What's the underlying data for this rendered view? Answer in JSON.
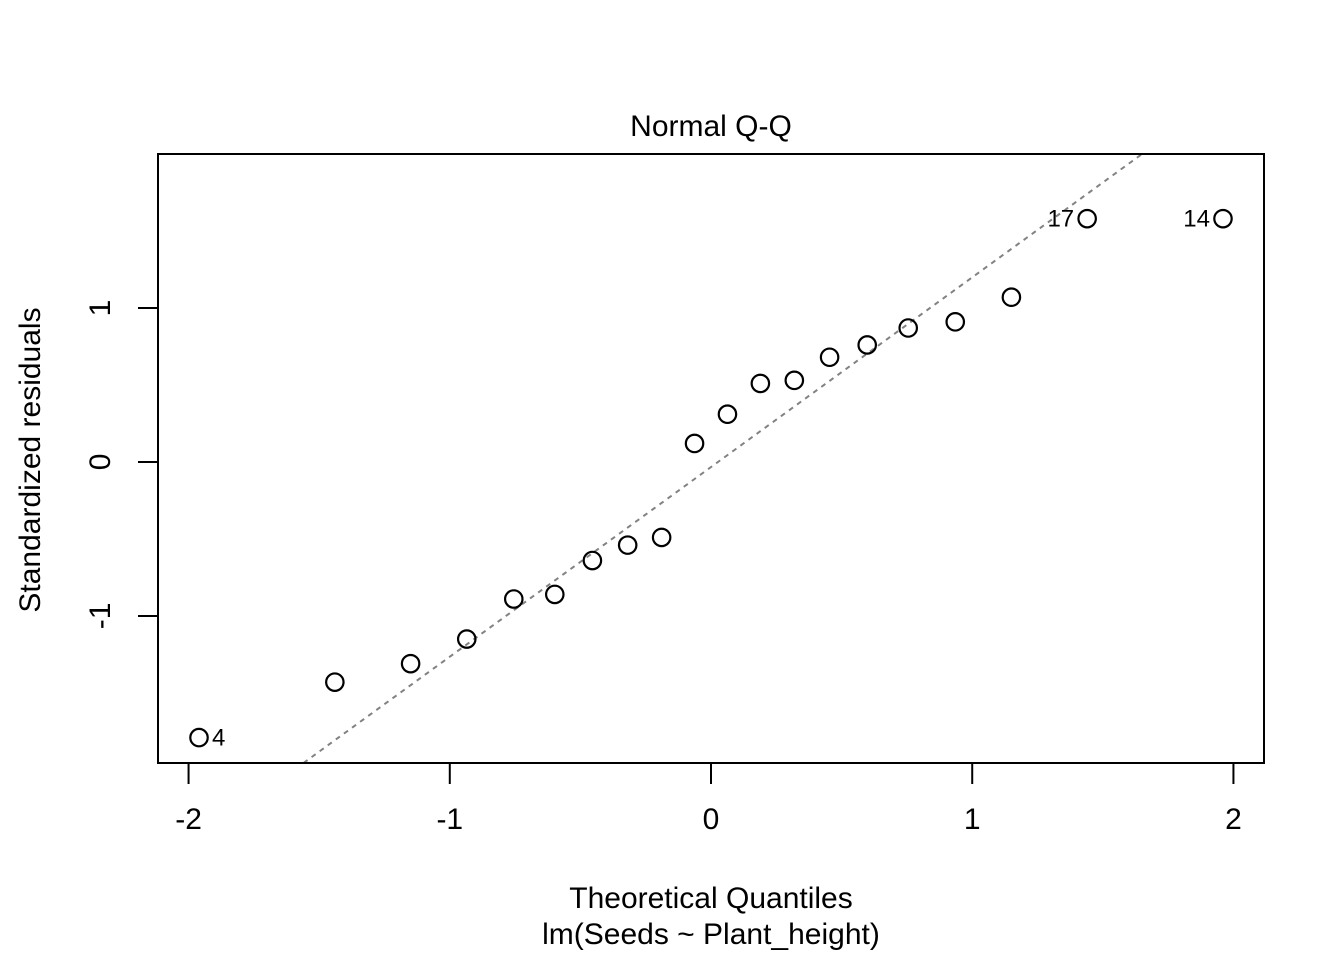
{
  "chart_data": {
    "type": "scatter",
    "title": "Normal Q-Q",
    "xlabel": "Theoretical Quantiles",
    "x_sublabel": "lm(Seeds ~ Plant_height)",
    "ylabel": "Standardized residuals",
    "xlim": [
      -2.117,
      2.117
    ],
    "ylim": [
      -1.955,
      2.0
    ],
    "x_ticks": [
      -2,
      -1,
      0,
      1,
      2
    ],
    "y_ticks": [
      -1,
      0,
      1
    ],
    "grid": false,
    "legend": "none",
    "point_style": {
      "marker": "open-circle",
      "radius_px": 8.7,
      "stroke_color": "#000000",
      "stroke_width": 2.2
    },
    "reference_line": {
      "name": "qqline",
      "slope": 1.232,
      "intercept": -0.033,
      "style": "dotted",
      "color": "#828282",
      "width": 2
    },
    "points": [
      {
        "x": -1.96,
        "y": -1.79,
        "label": "4",
        "label_side": "right"
      },
      {
        "x": -1.44,
        "y": -1.43
      },
      {
        "x": -1.15,
        "y": -1.31
      },
      {
        "x": -0.935,
        "y": -1.15
      },
      {
        "x": -0.755,
        "y": -0.89
      },
      {
        "x": -0.598,
        "y": -0.86
      },
      {
        "x": -0.454,
        "y": -0.64
      },
      {
        "x": -0.319,
        "y": -0.54
      },
      {
        "x": -0.189,
        "y": -0.49
      },
      {
        "x": -0.063,
        "y": 0.12
      },
      {
        "x": 0.063,
        "y": 0.31
      },
      {
        "x": 0.189,
        "y": 0.51
      },
      {
        "x": 0.319,
        "y": 0.53
      },
      {
        "x": 0.454,
        "y": 0.68
      },
      {
        "x": 0.598,
        "y": 0.76
      },
      {
        "x": 0.755,
        "y": 0.87
      },
      {
        "x": 0.935,
        "y": 0.91
      },
      {
        "x": 1.15,
        "y": 1.07
      },
      {
        "x": 1.44,
        "y": 1.58,
        "label": "17",
        "label_side": "left"
      },
      {
        "x": 1.96,
        "y": 1.58,
        "label": "14",
        "label_side": "left"
      }
    ],
    "colors": {
      "foreground": "#000000",
      "background": "#ffffff",
      "reference_line": "#828282"
    }
  }
}
